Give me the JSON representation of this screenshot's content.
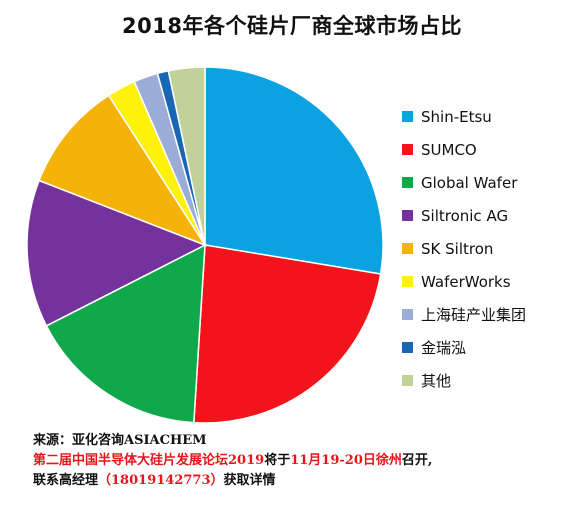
{
  "chart_data": {
    "type": "pie",
    "title": "2018年各个硅片厂商全球市场占比",
    "categories": [
      "Shin-Etsu",
      "SUMCO",
      "Global Wafer",
      "Siltronic AG",
      "SK Siltron",
      "WaferWorks",
      "上海硅产业集团",
      "金瑞泓",
      "其他"
    ],
    "values": [
      27.6,
      23.4,
      16.5,
      13.4,
      10.0,
      2.6,
      2.2,
      1.0,
      3.3
    ],
    "unit": "%",
    "colors": [
      "#0aa2e0",
      "#f2141a",
      "#0fa84a",
      "#74329c",
      "#f5b30a",
      "#fff20a",
      "#9aacd7",
      "#1a66b6",
      "#c0d29a"
    ],
    "start_angle_deg": 0,
    "direction": "clockwise",
    "legend_position": "right"
  },
  "footer": {
    "source": "来源：亚化咨询ASIACHEM",
    "promo_part1": "第二届中国半导体大硅片发展论坛2019",
    "promo_part2": "将于",
    "promo_part3": "11月19-20日徐州",
    "promo_part4": "召开,",
    "contact_part1": "联系高经理",
    "contact_part2": "（18019142773）",
    "contact_part3": "获取详情"
  }
}
